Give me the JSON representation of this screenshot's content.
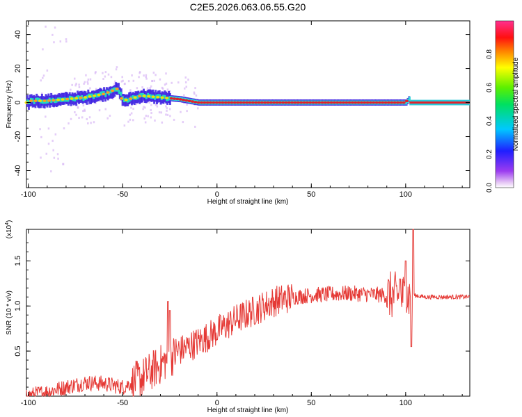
{
  "title": "C2E5.2026.063.06.55.G20",
  "colors": {
    "snr_line": "#e53935",
    "axis": "#000000"
  },
  "chart_data": [
    {
      "type": "heatmap",
      "xlabel": "Height of straight line (km)",
      "ylabel": "Frequency (Hz)",
      "xlim": [
        -101,
        134
      ],
      "ylim": [
        -50,
        48
      ],
      "xticks": [
        -100,
        -50,
        0,
        50,
        100
      ],
      "yticks": [
        -40,
        -20,
        0,
        20,
        40
      ],
      "colorbar": {
        "label": "Normalized spectral amplitude",
        "range": [
          0,
          1
        ],
        "ticks": [
          "0.0",
          "0.2",
          "0.4",
          "0.6",
          "0.8"
        ],
        "colormap": "rainbow (magenta-blue-cyan-green-yellow-red-pink)"
      },
      "ridge": [
        {
          "x": -100,
          "y": 1
        },
        {
          "x": -90,
          "y": 1
        },
        {
          "x": -80,
          "y": 2
        },
        {
          "x": -70,
          "y": 3
        },
        {
          "x": -60,
          "y": 5
        },
        {
          "x": -53,
          "y": 8
        },
        {
          "x": -50,
          "y": 1
        },
        {
          "x": -40,
          "y": 4
        },
        {
          "x": -30,
          "y": 3
        },
        {
          "x": -20,
          "y": 2
        },
        {
          "x": -10,
          "y": 0
        },
        {
          "x": 0,
          "y": 0
        },
        {
          "x": 50,
          "y": 0
        },
        {
          "x": 100,
          "y": 0
        },
        {
          "x": 102,
          "y": 3
        },
        {
          "x": 104,
          "y": 0
        },
        {
          "x": 134,
          "y": 0
        }
      ],
      "ridge_note_values": {
        "noise_region_x": [
          -101,
          -25
        ],
        "clean_region_x": [
          -25,
          134
        ]
      }
    },
    {
      "type": "line",
      "xlabel": "Height of straight line (km)",
      "ylabel": "SNR (10 * v/v)",
      "y_multiplier": "(x10",
      "y_multiplier_exp": "4",
      "xlim": [
        -101,
        134
      ],
      "ylim": [
        0,
        1.85
      ],
      "xticks": [
        -100,
        -50,
        0,
        50,
        100
      ],
      "yticks": [
        "0.5",
        "1.0",
        "1.5"
      ],
      "series": [
        {
          "color": "#e53935",
          "trend": [
            {
              "x": -101,
              "y": 0.0
            },
            {
              "x": -90,
              "y": 0.05
            },
            {
              "x": -80,
              "y": 0.1
            },
            {
              "x": -70,
              "y": 0.15
            },
            {
              "x": -60,
              "y": 0.14
            },
            {
              "x": -50,
              "y": 0.1
            },
            {
              "x": -40,
              "y": 0.2
            },
            {
              "x": -30,
              "y": 0.35
            },
            {
              "x": -20,
              "y": 0.5
            },
            {
              "x": -10,
              "y": 0.6
            },
            {
              "x": 0,
              "y": 0.72
            },
            {
              "x": 10,
              "y": 0.85
            },
            {
              "x": 20,
              "y": 0.95
            },
            {
              "x": 30,
              "y": 1.05
            },
            {
              "x": 40,
              "y": 1.1
            },
            {
              "x": 50,
              "y": 1.12
            },
            {
              "x": 60,
              "y": 1.13
            },
            {
              "x": 70,
              "y": 1.14
            },
            {
              "x": 80,
              "y": 1.13
            },
            {
              "x": 90,
              "y": 1.12
            },
            {
              "x": 100,
              "y": 1.1
            },
            {
              "x": 104,
              "y": 1.12
            },
            {
              "x": 110,
              "y": 1.1
            },
            {
              "x": 134,
              "y": 1.1
            }
          ],
          "peaks": [
            {
              "x": -25,
              "y": 0.95
            },
            {
              "x": -26,
              "y": 1.05
            },
            {
              "x": 97,
              "y": 1.3
            },
            {
              "x": 100,
              "y": 1.5
            },
            {
              "x": 104,
              "y": 1.85
            },
            {
              "x": 103,
              "y": 0.55
            }
          ]
        }
      ]
    }
  ]
}
